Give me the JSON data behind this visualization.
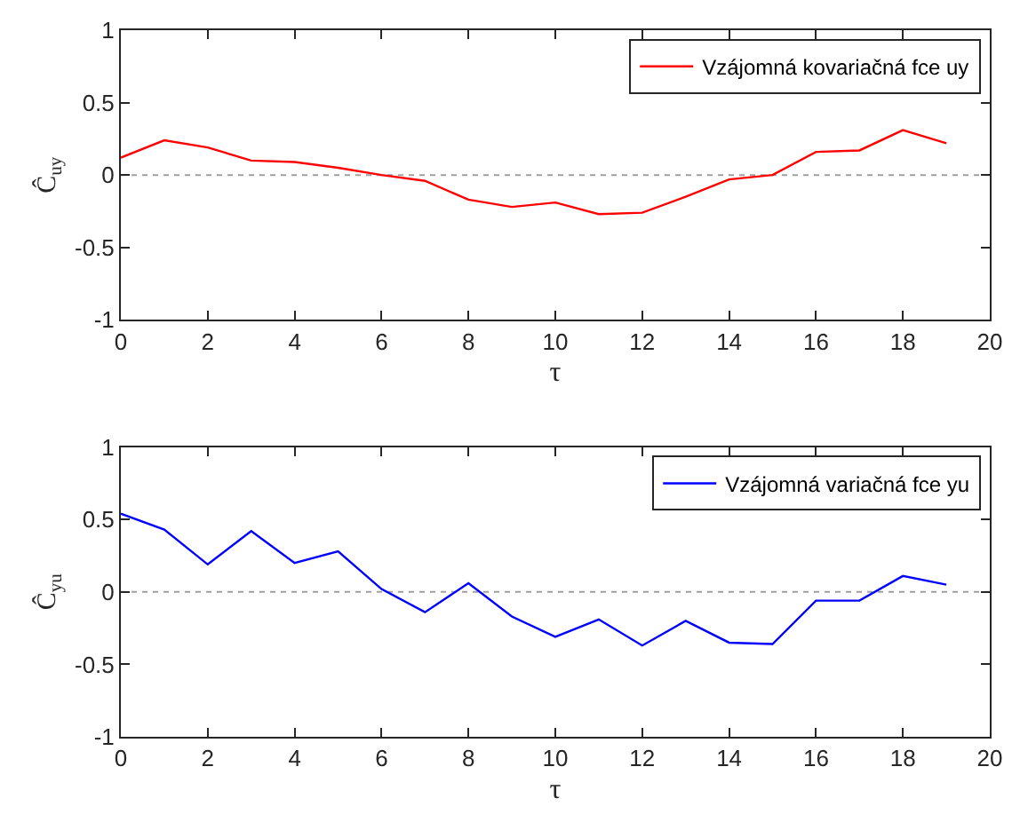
{
  "chart_data": [
    {
      "type": "line",
      "xlabel": "τ",
      "ylabel": "Ĉ$_{uy}$",
      "legend": "top right",
      "grid": false,
      "x": [
        0,
        1,
        2,
        3,
        4,
        5,
        6,
        7,
        8,
        9,
        10,
        11,
        12,
        13,
        14,
        15,
        16,
        17,
        18,
        19
      ],
      "series": [
        {
          "name": "Vzájomná kovariačná fce uy",
          "color": "#ff0000",
          "values": [
            0.12,
            0.24,
            0.19,
            0.1,
            0.09,
            0.05,
            0.0,
            -0.04,
            -0.17,
            -0.22,
            -0.19,
            -0.27,
            -0.26,
            -0.15,
            -0.03,
            0.0,
            0.16,
            0.17,
            0.31,
            0.22
          ]
        }
      ],
      "xlim": [
        0,
        20
      ],
      "xticks": [
        0,
        2,
        4,
        6,
        8,
        10,
        12,
        14,
        16,
        18,
        20
      ],
      "ylim": [
        -1,
        1
      ],
      "yticks": [
        -1,
        -0.5,
        0,
        0.5,
        1
      ],
      "ref_lines": [
        {
          "axis": "y",
          "value": 0,
          "color": "#a0a0a0",
          "line_style": "dotted"
        }
      ]
    },
    {
      "type": "line",
      "xlabel": "τ",
      "ylabel": "Ĉ$_{yu}$",
      "legend": "top right",
      "grid": false,
      "x": [
        0,
        1,
        2,
        3,
        4,
        5,
        6,
        7,
        8,
        9,
        10,
        11,
        12,
        13,
        14,
        15,
        16,
        17,
        18,
        19
      ],
      "series": [
        {
          "name": "Vzájomná variačná fce yu",
          "color": "#0000ff",
          "values": [
            0.54,
            0.43,
            0.19,
            0.42,
            0.2,
            0.28,
            0.02,
            -0.14,
            0.06,
            -0.17,
            -0.31,
            -0.19,
            -0.37,
            -0.2,
            -0.35,
            -0.36,
            -0.06,
            -0.06,
            0.11,
            0.05
          ]
        }
      ],
      "xlim": [
        0,
        20
      ],
      "xticks": [
        0,
        2,
        4,
        6,
        8,
        10,
        12,
        14,
        16,
        18,
        20
      ],
      "ylim": [
        -1,
        1
      ],
      "yticks": [
        -1,
        -0.5,
        0,
        0.5,
        1
      ],
      "ref_lines": [
        {
          "axis": "y",
          "value": 0,
          "color": "#a0a0a0",
          "line_style": "dotted"
        }
      ]
    }
  ]
}
